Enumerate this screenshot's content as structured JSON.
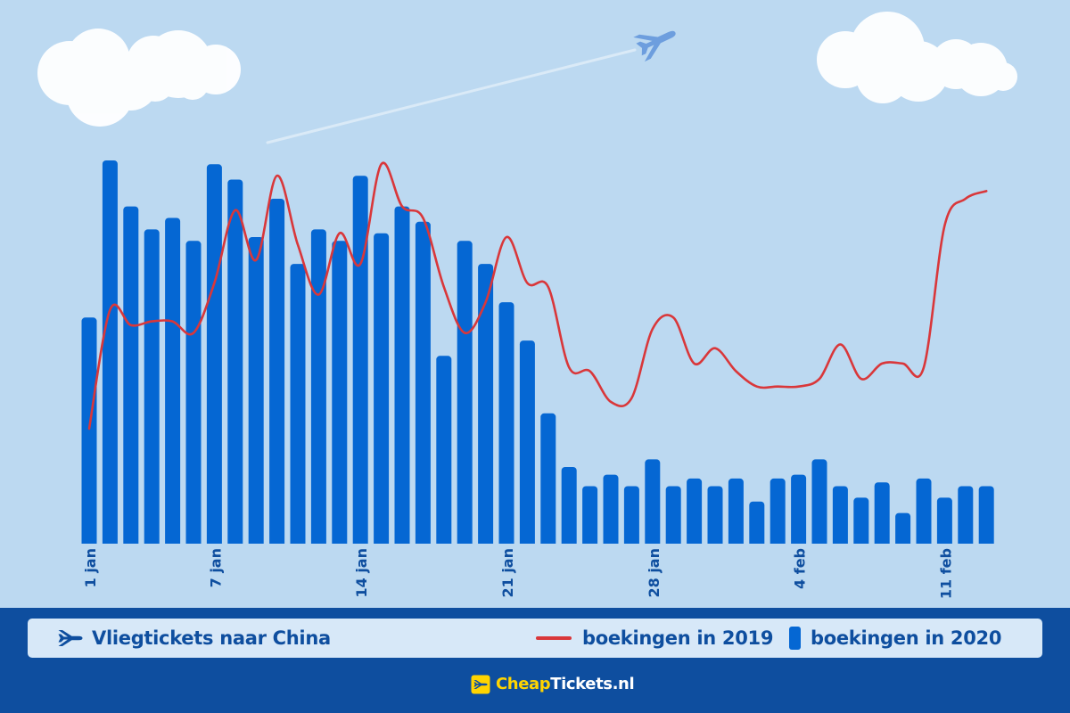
{
  "legend": {
    "title": "Vliegtickets naar China",
    "line_label": "boekingen in 2019",
    "bar_label": "boekingen in 2020"
  },
  "brand": {
    "part1": "Cheap",
    "part2": "Tickets.nl"
  },
  "icons": {
    "legend": "airplane-icon",
    "brand": "airplane-icon",
    "sky": "airplane-icon"
  },
  "colors": {
    "background": "#bcd9f1",
    "bar": "#0567d3",
    "line": "#d9373a",
    "footer": "#0e4e9f",
    "brand_yellow": "#ffd400",
    "cloud": "#ffffff"
  },
  "chart_data": {
    "type": "bar",
    "title": "Vliegtickets naar China",
    "x_ticks": [
      "1 jan",
      "7 jan",
      "14 jan",
      "21 jan",
      "28 jan",
      "4 feb",
      "11 feb"
    ],
    "x_tick_indices": [
      0,
      6,
      13,
      20,
      27,
      34,
      41
    ],
    "days": 44,
    "ylim": [
      0,
      100
    ],
    "grid": false,
    "legend_position": "bottom",
    "series": [
      {
        "name": "boekingen in 2020",
        "type": "bar",
        "values": [
          59,
          100,
          88,
          82,
          85,
          79,
          99,
          95,
          80,
          90,
          73,
          82,
          79,
          96,
          81,
          88,
          84,
          49,
          79,
          73,
          63,
          53,
          34,
          20,
          15,
          18,
          15,
          22,
          15,
          17,
          15,
          17,
          11,
          17,
          18,
          22,
          15,
          12,
          16,
          8,
          17,
          12,
          15,
          15
        ]
      },
      {
        "name": "boekingen in 2019",
        "type": "line",
        "values": [
          30,
          61,
          57,
          58,
          58,
          55,
          68,
          87,
          74,
          96,
          78,
          65,
          81,
          73,
          99,
          88,
          85,
          67,
          55,
          63,
          80,
          68,
          67,
          46,
          45,
          37,
          38,
          56,
          59,
          47,
          51,
          45,
          41,
          41,
          41,
          43,
          52,
          43,
          47,
          47,
          46,
          83,
          90,
          92
        ]
      }
    ]
  }
}
